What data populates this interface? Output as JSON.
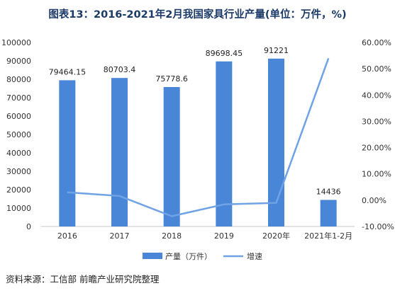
{
  "title": "图表13：2016-2021年2月我国家具行业产量(单位：万件，%)",
  "source": "资料来源：工信部 前瞻产业研究院整理",
  "chart_data": {
    "type": "bar",
    "categories": [
      "2016",
      "2017",
      "2018",
      "2019",
      "2020年",
      "2021年1-2月"
    ],
    "series": [
      {
        "name": "产量（万件）",
        "kind": "bar",
        "axis": "left",
        "values": [
          79464.15,
          80703.4,
          75778.6,
          89698.45,
          91221,
          14436
        ],
        "labels": [
          "79464.15",
          "80703.4",
          "75778.6",
          "89698.45",
          "91221",
          "14436"
        ],
        "color": "#4a86d8"
      },
      {
        "name": "增速",
        "kind": "line",
        "axis": "right",
        "values": [
          3.0,
          1.6,
          -6.1,
          -1.6,
          -1.0,
          54.0
        ],
        "color": "#6fa3e6"
      }
    ],
    "y_left": {
      "min": 0,
      "max": 100000,
      "step": 10000,
      "ticks": [
        "0",
        "10000",
        "20000",
        "30000",
        "40000",
        "50000",
        "60000",
        "70000",
        "80000",
        "90000",
        "100000"
      ]
    },
    "y_right": {
      "min": -10,
      "max": 60,
      "step": 10,
      "ticks": [
        "-10.00%",
        "0.00%",
        "10.00%",
        "20.00%",
        "30.00%",
        "40.00%",
        "50.00%",
        "60.00%"
      ]
    },
    "legend_position": "bottom",
    "grid": false
  }
}
